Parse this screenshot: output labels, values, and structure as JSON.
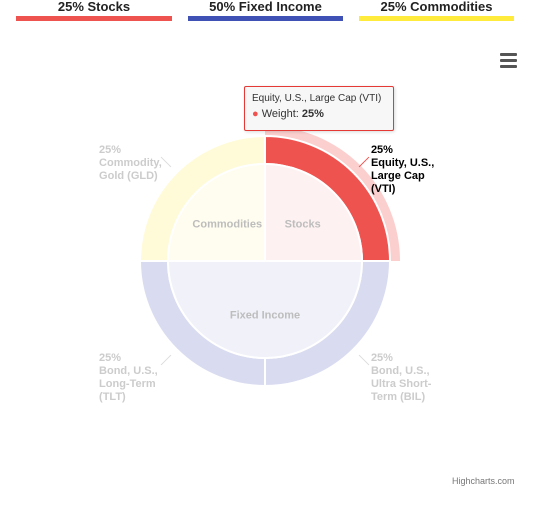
{
  "legend": [
    {
      "label": "25% Stocks",
      "color": "#ef5350"
    },
    {
      "label": "50% Fixed Income",
      "color": "#3f51b5"
    },
    {
      "label": "25% Commodities",
      "color": "#ffeb3b"
    }
  ],
  "menu": {
    "icon": "hamburger-menu-icon"
  },
  "tooltip": {
    "title": "Equity, U.S., Large Cap (VTI)",
    "series_label": "Weight:",
    "value": "25%"
  },
  "credits": "Highcharts.com",
  "chart_data": {
    "type": "pie",
    "inner_ring": [
      {
        "name": "Stocks",
        "value": 25,
        "color": "#ef5350"
      },
      {
        "name": "Fixed Income",
        "value": 50,
        "color": "#3f51b5"
      },
      {
        "name": "Commodities",
        "value": 25,
        "color": "#ffeb3b"
      }
    ],
    "outer_ring": [
      {
        "label_lines": [
          "25%",
          "Equity, U.S.,",
          "Large Cap",
          "(VTI)"
        ],
        "value": 25,
        "color": "#ef5350",
        "highlighted": true
      },
      {
        "label_lines": [
          "25%",
          "Bond, U.S.,",
          "Ultra Short-",
          "Term (BIL)"
        ],
        "value": 25,
        "color": "#3f51b5"
      },
      {
        "label_lines": [
          "25%",
          "Bond, U.S.,",
          "Long-Term",
          "(TLT)"
        ],
        "value": 25,
        "color": "#3f51b5"
      },
      {
        "label_lines": [
          "25%",
          "Commodity,",
          "Gold (GLD)"
        ],
        "value": 25,
        "color": "#ffeb3b"
      }
    ]
  }
}
